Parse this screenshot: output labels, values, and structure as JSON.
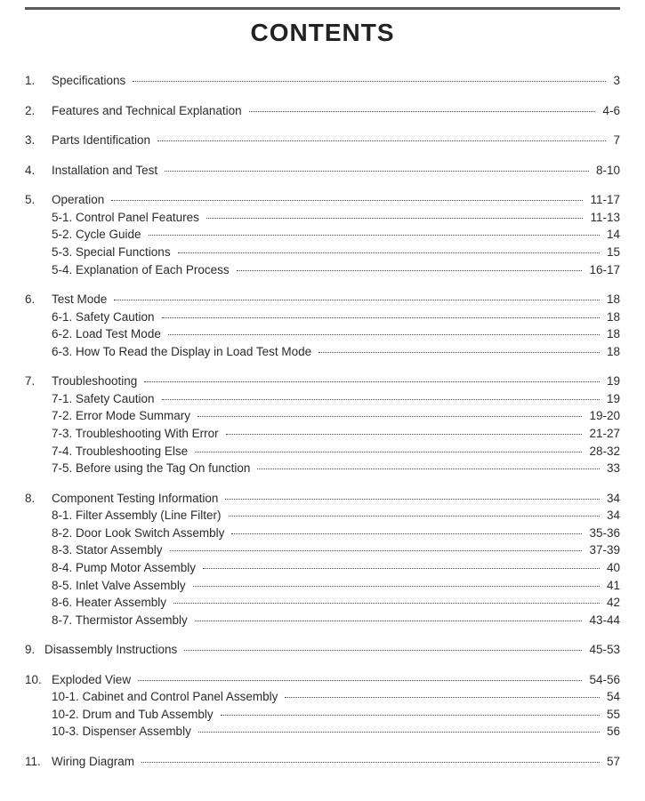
{
  "title": "CONTENTS",
  "text_color": "#2b2b2b",
  "background_color": "#ffffff",
  "rule_color": "#5a5a5a",
  "font_family": "Arial, Helvetica, sans-serif",
  "title_fontsize": 28,
  "body_fontsize": 13.5,
  "sections": [
    {
      "num": "1.",
      "label": "Specifications",
      "page": "3",
      "subs": []
    },
    {
      "num": "2.",
      "label": "Features and Technical Explanation",
      "page": "4-6",
      "subs": []
    },
    {
      "num": "3.",
      "label": "Parts Identification",
      "page": "7",
      "subs": []
    },
    {
      "num": "4.",
      "label": "Installation and Test",
      "page": "8-10",
      "subs": []
    },
    {
      "num": "5.",
      "label": "Operation",
      "page": "11-17",
      "subs": [
        {
          "label": "5-1. Control Panel Features",
          "page": "11-13"
        },
        {
          "label": "5-2. Cycle Guide",
          "page": "14"
        },
        {
          "label": "5-3. Special Functions",
          "page": "15"
        },
        {
          "label": "5-4. Explanation of Each Process",
          "page": "16-17"
        }
      ]
    },
    {
      "num": "6.",
      "label": "Test Mode",
      "page": "18",
      "subs": [
        {
          "label": "6-1. Safety Caution",
          "page": "18"
        },
        {
          "label": "6-2. Load Test Mode",
          "page": "18"
        },
        {
          "label": "6-3. How To Read the Display in Load Test Mode",
          "page": "18"
        }
      ]
    },
    {
      "num": "7.",
      "label": "Troubleshooting",
      "page": "19",
      "subs": [
        {
          "label": "7-1. Safety Caution",
          "page": "19"
        },
        {
          "label": "7-2. Error Mode Summary",
          "page": "19-20"
        },
        {
          "label": "7-3. Troubleshooting With Error",
          "page": "21-27"
        },
        {
          "label": "7-4. Troubleshooting Else",
          "page": "28-32"
        },
        {
          "label": "7-5. Before using the Tag On function",
          "page": "33"
        }
      ]
    },
    {
      "num": "8.",
      "label": "Component Testing Information",
      "page": "34",
      "subs": [
        {
          "label": "8-1. Filter Assembly (Line Filter)",
          "page": "34"
        },
        {
          "label": "8-2. Door Look Switch Assembly",
          "page": "35-36"
        },
        {
          "label": "8-3. Stator Assembly",
          "page": "37-39"
        },
        {
          "label": "8-4. Pump Motor Assembly",
          "page": "40"
        },
        {
          "label": "8-5. Inlet Valve Assembly",
          "page": "41"
        },
        {
          "label": "8-6. Heater Assembly",
          "page": "42"
        },
        {
          "label": "8-7. Thermistor Assembly",
          "page": "43-44"
        }
      ]
    },
    {
      "num": "9.",
      "label": "Disassembly Instructions",
      "page": "45-53",
      "subs": [],
      "tight": true
    },
    {
      "num": "10.",
      "label": "Exploded View",
      "page": "54-56",
      "subs": [
        {
          "label": "10-1. Cabinet and Control Panel Assembly",
          "page": "54"
        },
        {
          "label": "10-2. Drum and Tub Assembly",
          "page": "55"
        },
        {
          "label": "10-3. Dispenser Assembly",
          "page": "56"
        }
      ]
    },
    {
      "num": "11.",
      "label": "Wiring Diagram",
      "page": "57",
      "subs": []
    }
  ]
}
